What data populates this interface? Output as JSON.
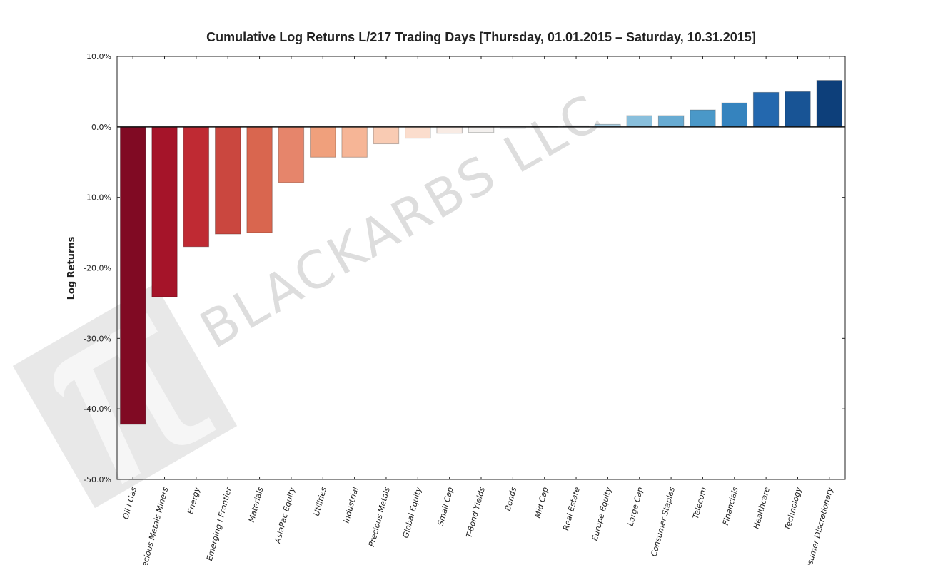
{
  "chart_data": {
    "type": "bar",
    "title": "Cumulative Log Returns L/217 Trading Days  [Thursday, 01.01.2015 – Saturday, 10.31.2015]",
    "xlabel": "",
    "ylabel": "Log Returns",
    "ylim": [
      -50,
      10
    ],
    "yticks": [
      "10.0%",
      "0.0%",
      "-10.0%",
      "-20.0%",
      "-30.0%",
      "-40.0%",
      "-50.0%"
    ],
    "ytick_values": [
      10,
      0,
      -10,
      -20,
      -30,
      -40,
      -50
    ],
    "grid": false,
    "watermark": "BLACKARBS LLC",
    "categories": [
      "Oil I Gas",
      "Precious Metals Miners",
      "Energy",
      "Emerging I Frontier",
      "Materials",
      "AsiaPac Equity",
      "Utilities",
      "Industrial",
      "Precious Metals",
      "Global Equity",
      "Small Cap",
      "T-Bond Yields",
      "Bonds",
      "Mid Cap",
      "Real Estate",
      "Europe Equity",
      "Large Cap",
      "Consumer Staples",
      "Telecom",
      "Financials",
      "Healthcare",
      "Technology",
      "Consumer Discretionary"
    ],
    "values": [
      -42.2,
      -24.1,
      -17.0,
      -15.2,
      -15.0,
      -7.9,
      -4.3,
      -4.3,
      -2.4,
      -1.6,
      -0.9,
      -0.8,
      -0.2,
      0.05,
      0.15,
      0.35,
      1.6,
      1.6,
      2.4,
      3.4,
      4.9,
      5.0,
      6.6
    ],
    "colors": [
      "#800a23",
      "#a51429",
      "#bf2a33",
      "#ca473f",
      "#d9664f",
      "#e6856b",
      "#f0a07c",
      "#f6b596",
      "#f9cbb3",
      "#fbddcd",
      "#f8ebe4",
      "#f3f0ee",
      "#e7ebee",
      "#d8e6ef",
      "#c7dfec",
      "#a9d0e5",
      "#89bfdc",
      "#68abd2",
      "#4a98c8",
      "#3583be",
      "#2468ae",
      "#185495",
      "#0d3f7a"
    ]
  }
}
